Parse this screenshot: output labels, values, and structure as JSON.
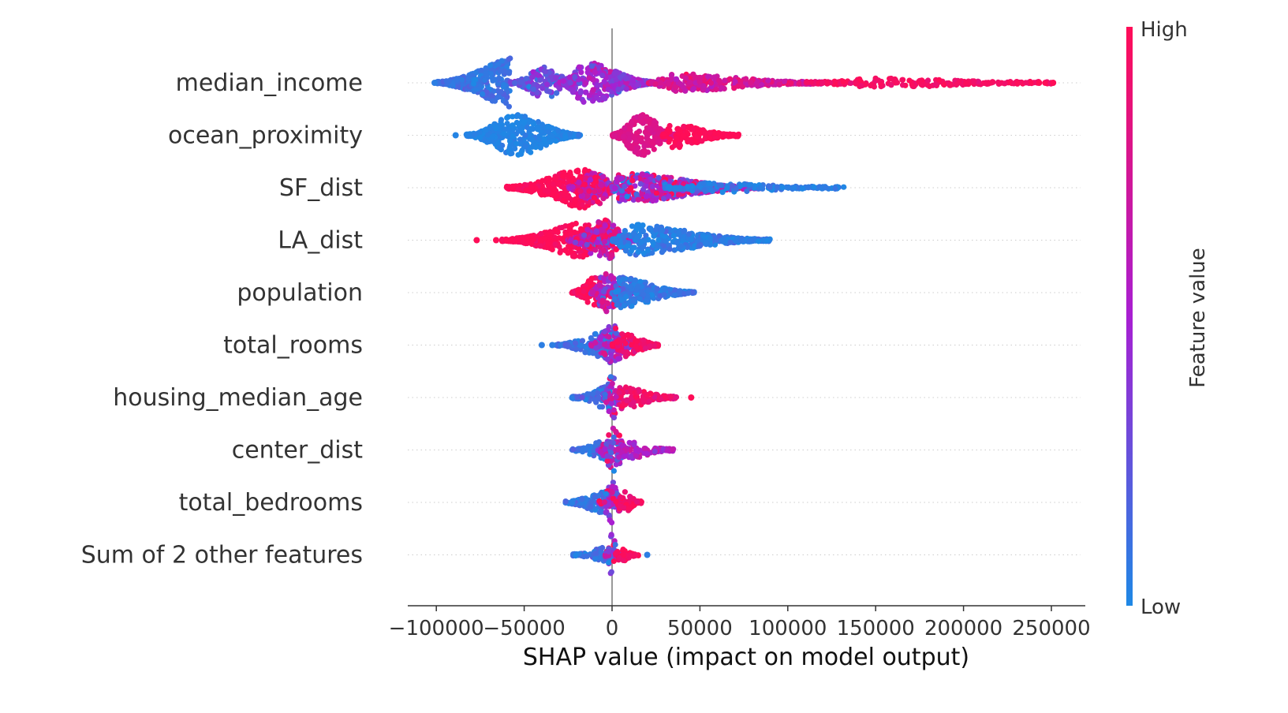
{
  "chart_data": {
    "type": "scatter",
    "subtype": "shap-beeswarm",
    "title": "",
    "xlabel": "SHAP value (impact on model output)",
    "ylabel": "",
    "xlim": [
      -117000,
      270000
    ],
    "x_ticks": [
      -100000,
      -50000,
      0,
      50000,
      100000,
      150000,
      200000,
      250000
    ],
    "x_tick_labels": [
      "−100000",
      "−50000",
      "0",
      "50000",
      "100000",
      "150000",
      "200000",
      "250000"
    ],
    "grid": "dotted horizontal row lines",
    "zero_line": true,
    "features": [
      {
        "name": "median_income",
        "blobs": [
          {
            "lo": -100000,
            "hi": -58000,
            "c": -54000,
            "w": 32,
            "h": 0.1,
            "hv": 0.05
          },
          {
            "lo": -58000,
            "hi": -20000,
            "c": -38000,
            "w": 20,
            "h": 0.28,
            "hv": 0.1
          },
          {
            "lo": -30000,
            "hi": 25000,
            "c": -15000,
            "w": 26,
            "h": 0.45,
            "hv": 0.12
          },
          {
            "lo": 20000,
            "hi": 120000,
            "c": 35000,
            "w": 12,
            "h": 0.75,
            "hv": 0.1
          },
          {
            "lo": 110000,
            "hi": 250000,
            "c": 150000,
            "w": 6,
            "h": 0.95,
            "hv": 0.04
          }
        ],
        "outliers": [
          {
            "x": -101000,
            "h": 0.05
          },
          {
            "x": 243000,
            "h": 1.0
          },
          {
            "x": 251000,
            "h": 1.0
          }
        ]
      },
      {
        "name": "ocean_proximity",
        "blobs": [
          {
            "lo": -83000,
            "hi": -18000,
            "c": -55000,
            "w": 26,
            "h": 0.02,
            "hv": 0.02
          },
          {
            "lo": 0,
            "hi": 36000,
            "c": 17000,
            "w": 28,
            "h": 0.8,
            "hv": 0.02
          },
          {
            "lo": 28000,
            "hi": 72000,
            "c": 34000,
            "w": 16,
            "h": 1.0,
            "hv": 0.02
          }
        ],
        "outliers": [
          {
            "x": -89000,
            "h": 0.02
          }
        ]
      },
      {
        "name": "SF_dist",
        "blobs": [
          {
            "lo": -60000,
            "hi": -5000,
            "c": -14000,
            "w": 26,
            "h": 1.0,
            "hv": 0.04
          },
          {
            "lo": -25000,
            "hi": 5000,
            "c": -10000,
            "w": 24,
            "h": 0.75,
            "hv": 0.25
          },
          {
            "lo": -2000,
            "hi": 85000,
            "c": 5000,
            "w": 20,
            "h": 0.55,
            "hv": 0.3
          },
          {
            "lo": 30000,
            "hi": 133000,
            "c": 55000,
            "w": 6,
            "h": 0.05,
            "hv": 0.05
          }
        ],
        "outliers": []
      },
      {
        "name": "LA_dist",
        "blobs": [
          {
            "lo": -63000,
            "hi": -5000,
            "c": -15000,
            "w": 22,
            "h": 1.0,
            "hv": 0.04
          },
          {
            "lo": -25000,
            "hi": 15000,
            "c": -5000,
            "w": 26,
            "h": 0.7,
            "hv": 0.25
          },
          {
            "lo": 0,
            "hi": 90000,
            "c": 10000,
            "w": 20,
            "h": 0.05,
            "hv": 0.05
          }
        ],
        "outliers": [
          {
            "x": -77000,
            "h": 1.0
          },
          {
            "x": -66000,
            "h": 1.0
          }
        ]
      },
      {
        "name": "population",
        "blobs": [
          {
            "lo": -23000,
            "hi": -2000,
            "c": -8000,
            "w": 22,
            "h": 1.0,
            "hv": 0.05
          },
          {
            "lo": -12000,
            "hi": 12000,
            "c": -4000,
            "w": 26,
            "h": 0.55,
            "hv": 0.25
          },
          {
            "lo": 0,
            "hi": 47000,
            "c": 3000,
            "w": 20,
            "h": 0.08,
            "hv": 0.06
          }
        ],
        "outliers": []
      },
      {
        "name": "total_rooms",
        "blobs": [
          {
            "lo": -32000,
            "hi": 0,
            "c": -5000,
            "w": 16,
            "h": 0.1,
            "hv": 0.06
          },
          {
            "lo": -12000,
            "hi": 12000,
            "c": 0,
            "w": 26,
            "h": 0.45,
            "hv": 0.25
          },
          {
            "lo": 0,
            "hi": 27000,
            "c": 7000,
            "w": 16,
            "h": 0.95,
            "hv": 0.05
          }
        ],
        "outliers": [
          {
            "x": -40000,
            "h": 0.05
          },
          {
            "x": -34000,
            "h": 0.05
          }
        ]
      },
      {
        "name": "housing_median_age",
        "blobs": [
          {
            "lo": -23000,
            "hi": -1000,
            "c": -3000,
            "w": 14,
            "h": 0.15,
            "hv": 0.08
          },
          {
            "lo": -5000,
            "hi": 5000,
            "c": 0,
            "w": 30,
            "h": 0.5,
            "hv": 0.3
          },
          {
            "lo": 2000,
            "hi": 37000,
            "c": 5000,
            "w": 14,
            "h": 0.9,
            "hv": 0.08
          }
        ],
        "outliers": [
          {
            "x": 45000,
            "h": 1.0
          }
        ]
      },
      {
        "name": "center_dist",
        "blobs": [
          {
            "lo": -23000,
            "hi": -1000,
            "c": -3000,
            "w": 12,
            "h": 0.1,
            "hv": 0.06
          },
          {
            "lo": -8000,
            "hi": 10000,
            "c": 1000,
            "w": 28,
            "h": 0.45,
            "hv": 0.3
          },
          {
            "lo": 3000,
            "hi": 35000,
            "c": 8000,
            "w": 12,
            "h": 0.55,
            "hv": 0.1
          }
        ],
        "outliers": []
      },
      {
        "name": "total_bedrooms",
        "blobs": [
          {
            "lo": -28000,
            "hi": 0,
            "c": -3000,
            "w": 14,
            "h": 0.08,
            "hv": 0.05
          },
          {
            "lo": -8000,
            "hi": 8000,
            "c": 0,
            "w": 26,
            "h": 0.5,
            "hv": 0.3
          },
          {
            "lo": 2000,
            "hi": 17000,
            "c": 6000,
            "w": 14,
            "h": 0.95,
            "hv": 0.06
          }
        ],
        "outliers": []
      },
      {
        "name": "Sum of 2 other features",
        "blobs": [
          {
            "lo": -23000,
            "hi": -1000,
            "c": -2000,
            "w": 10,
            "h": 0.1,
            "hv": 0.06
          },
          {
            "lo": -4000,
            "hi": 4000,
            "c": 0,
            "w": 28,
            "h": 0.5,
            "hv": 0.3
          },
          {
            "lo": 2000,
            "hi": 15000,
            "c": 4000,
            "w": 10,
            "h": 0.95,
            "hv": 0.06
          }
        ],
        "outliers": [
          {
            "x": 20000,
            "h": 0.05
          }
        ]
      }
    ],
    "colorbar": {
      "title": "Feature value",
      "high_label": "High",
      "low_label": "Low",
      "high_color": "#ff0d57",
      "mid_color": "#a81fd2",
      "low_color": "#1e88e5"
    },
    "colors": {
      "zero_line": "#999999",
      "grid": "#cccccc",
      "axis": "#333333"
    }
  }
}
